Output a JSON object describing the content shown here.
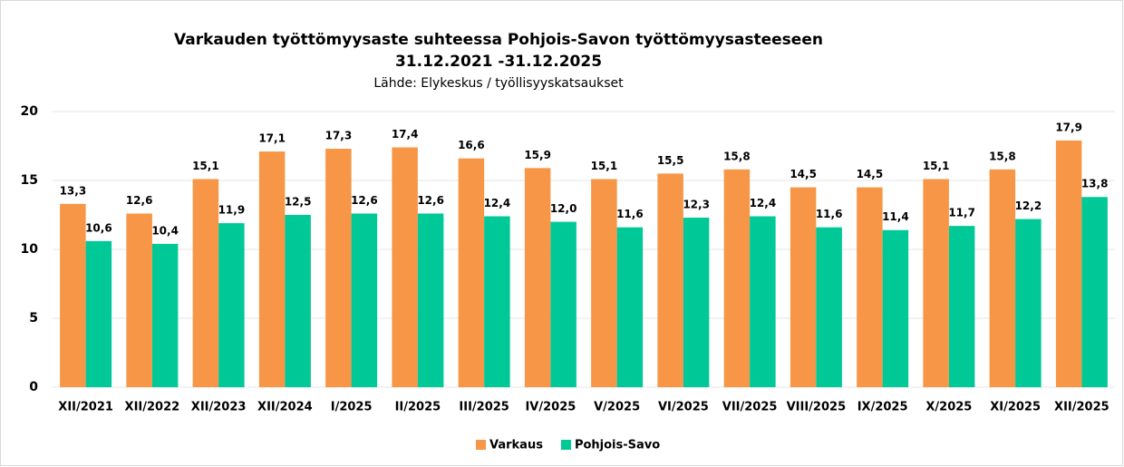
{
  "chart_data": {
    "type": "bar",
    "title": [
      "Varkauden työttömyysaste suhteessa Pohjois-Savon työttömyysasteeseen",
      "31.12.2021 -31.12.2025"
    ],
    "subtitle": "Lähde: Elykeskus / työllisyyskatsaukset",
    "categories": [
      "XII/2021",
      "XII/2022",
      "XII/2023",
      "XII/2024",
      "I/2025",
      "II/2025",
      "III/2025",
      "IV/2025",
      "V/2025",
      "VI/2025",
      "VII/2025",
      "VIII/2025",
      "IX/2025",
      "X/2025",
      "XI/2025",
      "XII/2025"
    ],
    "series": [
      {
        "name": "Varkaus",
        "color": "#f79646",
        "values": [
          13.3,
          12.6,
          15.1,
          17.1,
          17.3,
          17.4,
          16.6,
          15.9,
          15.1,
          15.5,
          15.8,
          14.5,
          14.5,
          15.1,
          15.8,
          17.9
        ],
        "value_labels": [
          "13,3",
          "12,6",
          "15,1",
          "17,1",
          "17,3",
          "17,4",
          "16,6",
          "15,9",
          "15,1",
          "15,5",
          "15,8",
          "14,5",
          "14,5",
          "15,1",
          "15,8",
          "17,9"
        ]
      },
      {
        "name": "Pohjois-Savo",
        "color": "#00c896",
        "values": [
          10.6,
          10.4,
          11.9,
          12.5,
          12.6,
          12.6,
          12.4,
          12.0,
          11.6,
          12.3,
          12.4,
          11.6,
          11.4,
          11.7,
          12.2,
          13.8
        ],
        "value_labels": [
          "10,6",
          "10,4",
          "11,9",
          "12,5",
          "12,6",
          "12,6",
          "12,4",
          "12,0",
          "11,6",
          "12,3",
          "12,4",
          "11,6",
          "11,4",
          "11,7",
          "12,2",
          "13,8"
        ]
      }
    ],
    "ylim": [
      0,
      20
    ],
    "yticks": [
      0,
      5,
      10,
      15,
      20
    ],
    "grid": true,
    "legend": "bottom"
  }
}
